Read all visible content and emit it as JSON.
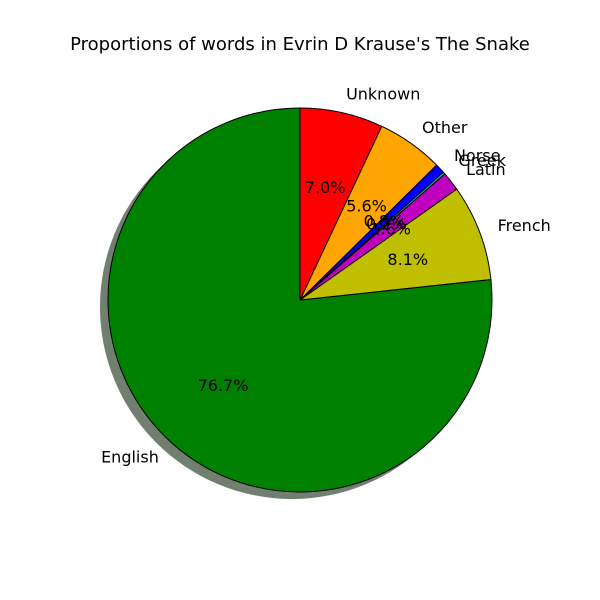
{
  "chart_data": {
    "type": "pie",
    "title": "Proportions of words in Evrin D Krause's The Snake",
    "shadow": true,
    "start_angle_deg": 90,
    "direction": "counterclockwise",
    "categories": [
      "English",
      "French",
      "Latin",
      "Greek",
      "Norse",
      "Other",
      "Unknown"
    ],
    "values": [
      76.7,
      8.1,
      1.6,
      0.2,
      0.8,
      5.6,
      7.0
    ],
    "value_labels": [
      "76.7%",
      "8.1%",
      "1.6%",
      "0.2%",
      "0.8%",
      "5.6%",
      "7.0%"
    ],
    "colors": [
      "#008000",
      "#bfbf00",
      "#bf00bf",
      "#00bfbf",
      "#0000ff",
      "#ffa500",
      "#ff0000"
    ],
    "edge_color": "#000000"
  }
}
